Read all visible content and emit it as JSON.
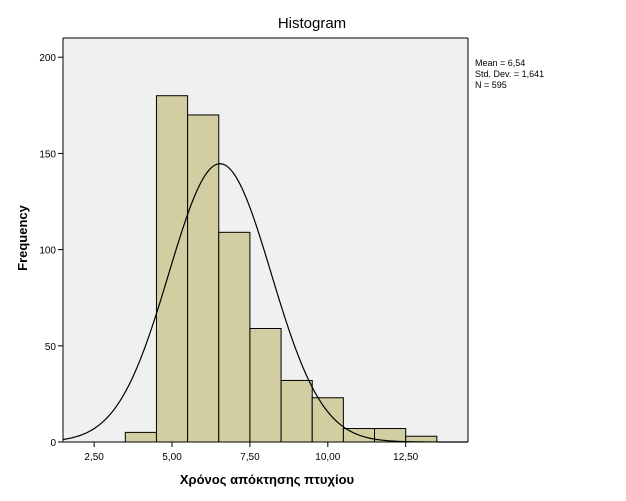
{
  "chart_data": {
    "type": "bar",
    "title": "Histogram",
    "xlabel": "Χρόνος απόκτησης πτυχίου",
    "ylabel": "Frequency",
    "xlim": [
      1.5,
      14.5
    ],
    "ylim": [
      0,
      210
    ],
    "x_ticks": [
      2.5,
      5.0,
      7.5,
      10.0,
      12.5
    ],
    "x_tick_labels": [
      "2,50",
      "5,00",
      "7,50",
      "10,00",
      "12,50"
    ],
    "y_ticks": [
      0,
      50,
      100,
      150,
      200
    ],
    "y_tick_labels": [
      "0",
      "50",
      "100",
      "150",
      "200"
    ],
    "bins": [
      {
        "x0": 3.5,
        "x1": 4.5,
        "count": 5
      },
      {
        "x0": 4.5,
        "x1": 5.5,
        "count": 180
      },
      {
        "x0": 5.5,
        "x1": 6.5,
        "count": 170
      },
      {
        "x0": 6.5,
        "x1": 7.5,
        "count": 109
      },
      {
        "x0": 7.5,
        "x1": 8.5,
        "count": 59
      },
      {
        "x0": 8.5,
        "x1": 9.5,
        "count": 32
      },
      {
        "x0": 9.5,
        "x1": 10.5,
        "count": 23
      },
      {
        "x0": 10.5,
        "x1": 11.5,
        "count": 7
      },
      {
        "x0": 11.5,
        "x1": 12.5,
        "count": 7
      },
      {
        "x0": 12.5,
        "x1": 13.5,
        "count": 3
      }
    ],
    "normal_curve": {
      "mean": 6.54,
      "std": 1.641,
      "n": 595,
      "bin_width": 1.0
    },
    "stats_text": [
      "Mean = 6,54",
      "Std. Dev. = 1,641",
      "N = 595"
    ],
    "bar_color": "#d3cea1",
    "plot_background": "#f0f0f0",
    "grid": false
  }
}
